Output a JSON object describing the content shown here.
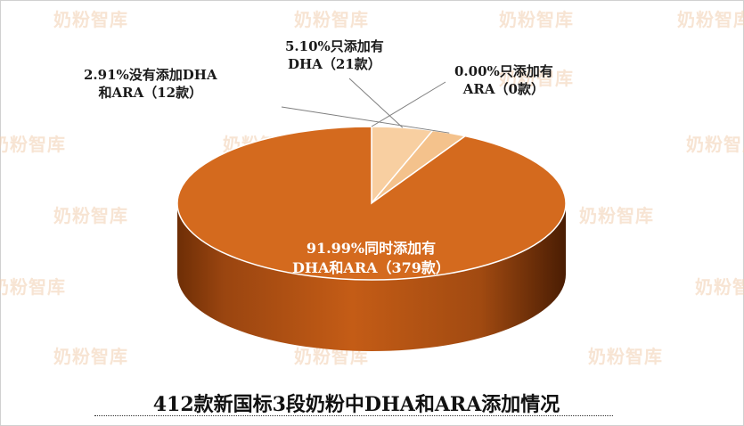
{
  "watermark": "奶粉智库",
  "chart_data": {
    "type": "pie",
    "style": "3d",
    "title": "412款新国标3段奶粉中DHA和ARA添加情况",
    "total_count": 412,
    "slices": [
      {
        "label_line1": "91.99%同时添加有",
        "label_line2": "DHA和ARA（379款）",
        "percent": 91.99,
        "count": 379,
        "color": "#d46a1e"
      },
      {
        "label_line1": "2.91%没有添加DHA",
        "label_line2": "和ARA（12款）",
        "percent": 2.91,
        "count": 12,
        "color": "#f4c28c"
      },
      {
        "label_line1": "5.10%只添加有",
        "label_line2": "DHA（21款）",
        "percent": 5.1,
        "count": 21,
        "color": "#f8cfa1"
      },
      {
        "label_line1": "0.00%只添加有",
        "label_line2": "ARA（0款）",
        "percent": 0.0,
        "count": 0,
        "color": "#fbe0c2"
      }
    ]
  }
}
